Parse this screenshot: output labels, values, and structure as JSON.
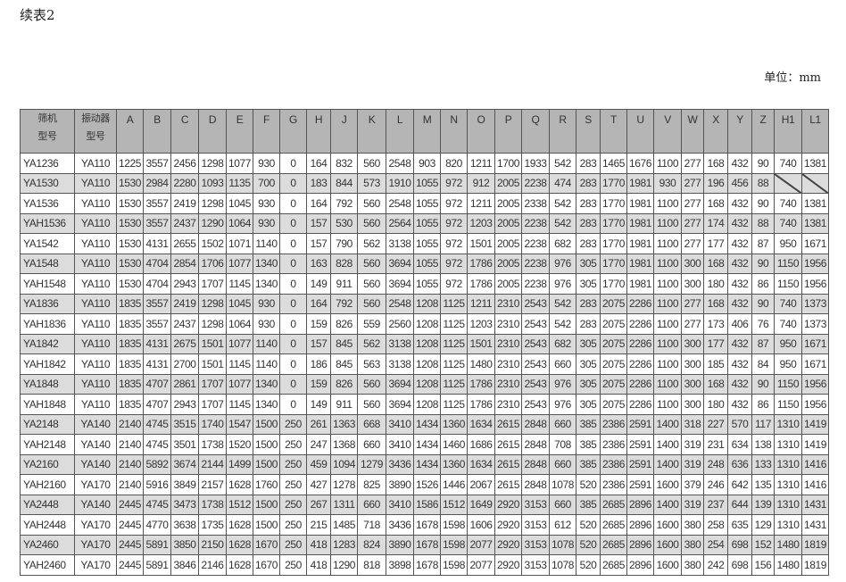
{
  "title": "续表2",
  "unit": "单位：mm",
  "header": {
    "screen_model": [
      "筛机",
      "型号"
    ],
    "vibrator_model": [
      "振动器",
      "型号"
    ],
    "dims": [
      "A",
      "B",
      "C",
      "D",
      "E",
      "F",
      "G",
      "H",
      "J",
      "K",
      "L",
      "M",
      "N",
      "O",
      "P",
      "Q",
      "R",
      "S",
      "T",
      "U",
      "V",
      "W",
      "X",
      "Y",
      "Z",
      "H1",
      "L1"
    ]
  },
  "rows": [
    [
      "YA1236",
      "YA110",
      "1225",
      "3557",
      "2456",
      "1298",
      "1077",
      "930",
      "0",
      "164",
      "832",
      "560",
      "2548",
      "903",
      "820",
      "1211",
      "1700",
      "1933",
      "542",
      "283",
      "1465",
      "1676",
      "1100",
      "277",
      "168",
      "432",
      "90",
      "740",
      "1381"
    ],
    [
      "YA1530",
      "YA110",
      "1530",
      "2984",
      "2280",
      "1093",
      "1135",
      "700",
      "0",
      "183",
      "844",
      "573",
      "1910",
      "1055",
      "972",
      "912",
      "2005",
      "2238",
      "474",
      "283",
      "1770",
      "1981",
      "930",
      "277",
      "196",
      "456",
      "88",
      null,
      null
    ],
    [
      "YA1536",
      "YA110",
      "1530",
      "3557",
      "2419",
      "1298",
      "1045",
      "930",
      "0",
      "164",
      "792",
      "560",
      "2548",
      "1055",
      "972",
      "1211",
      "2005",
      "2338",
      "542",
      "283",
      "1770",
      "1981",
      "1100",
      "277",
      "168",
      "432",
      "90",
      "740",
      "1381"
    ],
    [
      "YAH1536",
      "YA110",
      "1530",
      "3557",
      "2437",
      "1290",
      "1064",
      "930",
      "0",
      "157",
      "530",
      "560",
      "2564",
      "1055",
      "972",
      "1203",
      "2005",
      "2238",
      "542",
      "283",
      "1770",
      "1981",
      "1100",
      "277",
      "174",
      "432",
      "88",
      "740",
      "1381"
    ],
    [
      "YA1542",
      "YA110",
      "1530",
      "4131",
      "2655",
      "1502",
      "1071",
      "1140",
      "0",
      "157",
      "790",
      "562",
      "3138",
      "1055",
      "972",
      "1501",
      "2005",
      "2238",
      "682",
      "283",
      "1770",
      "1981",
      "1100",
      "277",
      "177",
      "432",
      "87",
      "950",
      "1671"
    ],
    [
      "YA1548",
      "YA110",
      "1530",
      "4704",
      "2854",
      "1706",
      "1077",
      "1340",
      "0",
      "163",
      "828",
      "560",
      "3694",
      "1055",
      "972",
      "1786",
      "2005",
      "2238",
      "976",
      "305",
      "1770",
      "1981",
      "1100",
      "300",
      "168",
      "432",
      "90",
      "1150",
      "1956"
    ],
    [
      "YAH1548",
      "YA110",
      "1530",
      "4704",
      "2943",
      "1707",
      "1145",
      "1340",
      "0",
      "149",
      "911",
      "560",
      "3694",
      "1055",
      "972",
      "1786",
      "2005",
      "2238",
      "976",
      "305",
      "1770",
      "1981",
      "1100",
      "300",
      "180",
      "432",
      "86",
      "1150",
      "1956"
    ],
    [
      "YA1836",
      "YA110",
      "1835",
      "3557",
      "2419",
      "1298",
      "1045",
      "930",
      "0",
      "164",
      "792",
      "560",
      "2548",
      "1208",
      "1125",
      "1211",
      "2310",
      "2543",
      "542",
      "283",
      "2075",
      "2286",
      "1100",
      "277",
      "168",
      "432",
      "90",
      "740",
      "1373"
    ],
    [
      "YAH1836",
      "YA110",
      "1835",
      "3557",
      "2437",
      "1298",
      "1064",
      "930",
      "0",
      "159",
      "826",
      "559",
      "2560",
      "1208",
      "1125",
      "1203",
      "2310",
      "2543",
      "542",
      "283",
      "2075",
      "2286",
      "1100",
      "277",
      "173",
      "406",
      "76",
      "740",
      "1373"
    ],
    [
      "YA1842",
      "YA110",
      "1835",
      "4131",
      "2675",
      "1501",
      "1077",
      "1140",
      "0",
      "157",
      "845",
      "562",
      "3138",
      "1208",
      "1125",
      "1501",
      "2310",
      "2543",
      "682",
      "305",
      "2075",
      "2286",
      "1100",
      "300",
      "177",
      "432",
      "87",
      "950",
      "1671"
    ],
    [
      "YAH1842",
      "YA110",
      "1835",
      "4131",
      "2700",
      "1501",
      "1145",
      "1140",
      "0",
      "186",
      "845",
      "563",
      "3138",
      "1208",
      "1125",
      "1480",
      "2310",
      "2543",
      "660",
      "305",
      "2075",
      "2286",
      "1100",
      "300",
      "185",
      "432",
      "84",
      "950",
      "1671"
    ],
    [
      "YA1848",
      "YA110",
      "1835",
      "4707",
      "2861",
      "1707",
      "1077",
      "1340",
      "0",
      "159",
      "826",
      "560",
      "3694",
      "1208",
      "1125",
      "1786",
      "2310",
      "2543",
      "976",
      "305",
      "2075",
      "2286",
      "1100",
      "300",
      "168",
      "432",
      "90",
      "1150",
      "1956"
    ],
    [
      "YAH1848",
      "YA110",
      "1835",
      "4707",
      "2943",
      "1707",
      "1145",
      "1340",
      "0",
      "149",
      "911",
      "560",
      "3694",
      "1208",
      "1125",
      "1786",
      "2310",
      "2543",
      "976",
      "305",
      "2075",
      "2286",
      "1100",
      "300",
      "180",
      "432",
      "86",
      "1150",
      "1956"
    ],
    [
      "YA2148",
      "YA140",
      "2140",
      "4745",
      "3515",
      "1740",
      "1547",
      "1500",
      "250",
      "261",
      "1363",
      "668",
      "3410",
      "1434",
      "1360",
      "1634",
      "2615",
      "2848",
      "660",
      "385",
      "2386",
      "2591",
      "1400",
      "318",
      "227",
      "570",
      "117",
      "1310",
      "1419"
    ],
    [
      "YAH2148",
      "YA140",
      "2140",
      "4745",
      "3501",
      "1738",
      "1520",
      "1500",
      "250",
      "247",
      "1368",
      "660",
      "3410",
      "1434",
      "1460",
      "1686",
      "2615",
      "2848",
      "708",
      "385",
      "2386",
      "2591",
      "1400",
      "319",
      "231",
      "634",
      "138",
      "1310",
      "1419"
    ],
    [
      "YA2160",
      "YA140",
      "2140",
      "5892",
      "3674",
      "2144",
      "1499",
      "1500",
      "250",
      "459",
      "1094",
      "1279",
      "3436",
      "1434",
      "1360",
      "1634",
      "2615",
      "2848",
      "660",
      "385",
      "2386",
      "2591",
      "1400",
      "319",
      "248",
      "636",
      "133",
      "1310",
      "1416"
    ],
    [
      "YAH2160",
      "YA170",
      "2140",
      "5916",
      "3849",
      "2157",
      "1628",
      "1760",
      "250",
      "427",
      "1278",
      "825",
      "3890",
      "1526",
      "1446",
      "2067",
      "2615",
      "2848",
      "1078",
      "520",
      "2386",
      "2591",
      "1600",
      "379",
      "246",
      "642",
      "135",
      "1310",
      "1416"
    ],
    [
      "YA2448",
      "YA140",
      "2445",
      "4745",
      "3473",
      "1738",
      "1512",
      "1500",
      "250",
      "267",
      "1311",
      "660",
      "3410",
      "1586",
      "1512",
      "1649",
      "2920",
      "3153",
      "660",
      "385",
      "2685",
      "2896",
      "1400",
      "319",
      "237",
      "644",
      "139",
      "1310",
      "1431"
    ],
    [
      "YAH2448",
      "YA170",
      "2445",
      "4770",
      "3638",
      "1735",
      "1628",
      "1500",
      "250",
      "215",
      "1485",
      "718",
      "3436",
      "1678",
      "1598",
      "1606",
      "2920",
      "3153",
      "612",
      "520",
      "2685",
      "2896",
      "1600",
      "380",
      "258",
      "635",
      "129",
      "1310",
      "1431"
    ],
    [
      "YA2460",
      "YA170",
      "2445",
      "5891",
      "3850",
      "2150",
      "1628",
      "1670",
      "250",
      "418",
      "1283",
      "824",
      "3890",
      "1678",
      "1598",
      "2077",
      "2920",
      "3153",
      "1078",
      "520",
      "2685",
      "2896",
      "1600",
      "380",
      "254",
      "698",
      "152",
      "1480",
      "1819"
    ],
    [
      "YAH2460",
      "YA170",
      "2445",
      "5891",
      "3846",
      "2146",
      "1628",
      "1670",
      "250",
      "418",
      "1290",
      "818",
      "3898",
      "1678",
      "1598",
      "2077",
      "2920",
      "3153",
      "1078",
      "520",
      "2685",
      "2896",
      "1600",
      "380",
      "242",
      "698",
      "156",
      "1480",
      "1819"
    ]
  ]
}
